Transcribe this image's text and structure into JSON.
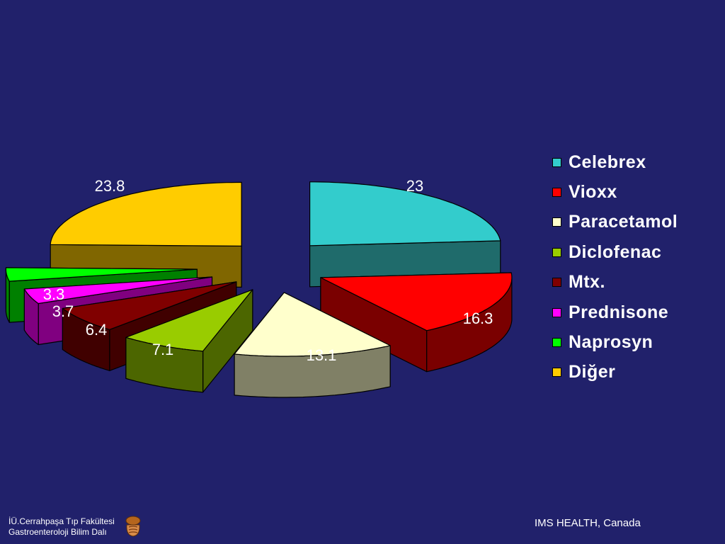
{
  "chart_data": {
    "type": "pie",
    "style": "3d-exploded",
    "slices": [
      {
        "label": "Celebrex",
        "value": 23,
        "value_label": "23",
        "color": "#33cccc",
        "side": "#1f6b6b"
      },
      {
        "label": "Vioxx",
        "value": 16.3,
        "value_label": "16.3",
        "color": "#ff0000",
        "side": "#7a0000"
      },
      {
        "label": "Paracetamol",
        "value": 13.1,
        "value_label": "13.1",
        "color": "#ffffcc",
        "side": "#808066"
      },
      {
        "label": "Diclofenac",
        "value": 7.1,
        "value_label": "7.1",
        "color": "#99cc00",
        "side": "#4c6600"
      },
      {
        "label": "Mtx.",
        "value": 6.4,
        "value_label": "6.4",
        "color": "#800000",
        "side": "#400000"
      },
      {
        "label": "Prednisone",
        "value": 3.7,
        "value_label": "3.7",
        "color": "#ff00ff",
        "side": "#800080"
      },
      {
        "label": "Naprosyn",
        "value": 3.3,
        "value_label": "3.3",
        "color": "#00ff00",
        "side": "#008000"
      },
      {
        "label": "Diğer",
        "value": 23.8,
        "value_label": "23.8",
        "color": "#ffcc00",
        "side": "#806600"
      }
    ],
    "legend_position": "right"
  },
  "footer": {
    "institution_line1": "İÜ.Cerrahpaşa Tıp Fakültesi",
    "institution_line2": "Gastroenteroloji Bilim Dalı",
    "source": "IMS HEALTH, Canada"
  }
}
